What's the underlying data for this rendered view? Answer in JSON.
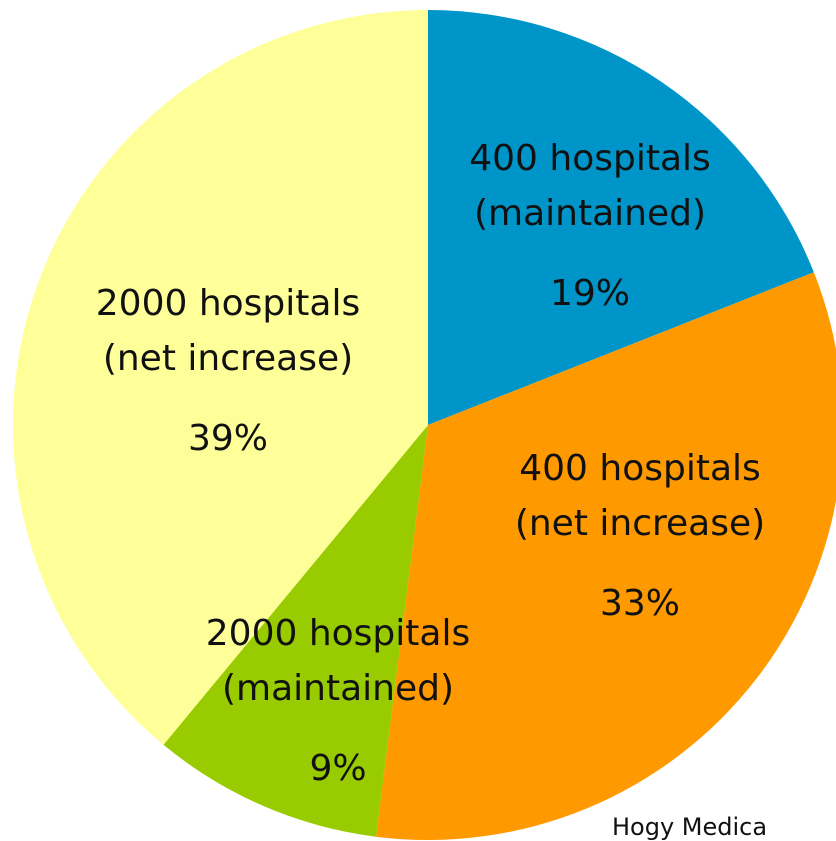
{
  "chart_data": {
    "type": "pie",
    "categories": [
      [
        "400 hospitals",
        "(maintained)"
      ],
      [
        "400 hospitals",
        "(net increase)"
      ],
      [
        "2000 hospitals",
        "(maintained)"
      ],
      [
        "2000 hospitals",
        "(net increase)"
      ]
    ],
    "values": [
      19,
      33,
      9,
      39
    ],
    "value_labels": [
      "19%",
      "33%",
      "9%",
      "39%"
    ],
    "colors": [
      "#0095c8",
      "#ff9900",
      "#99cc00",
      "#ffff99"
    ],
    "source": "Hogy Medica"
  }
}
